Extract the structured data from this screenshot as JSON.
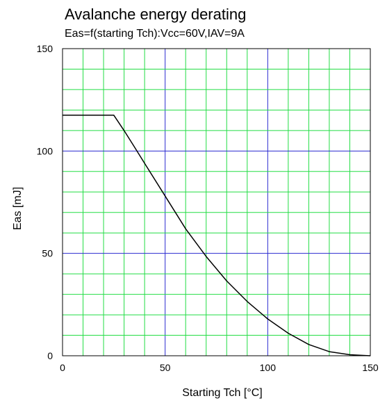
{
  "chart_data": {
    "type": "line",
    "title": "Avalanche energy derating",
    "subtitle": "Eas=f(starting Tch):Vcc=60V,IAV=9A",
    "xlabel": "Starting Tch [°C]",
    "ylabel": "Eas [mJ]",
    "xlim": [
      0,
      150
    ],
    "ylim": [
      0,
      150
    ],
    "x_ticks": [
      "0",
      "50",
      "100",
      "150"
    ],
    "y_ticks": [
      "0",
      "50",
      "100",
      "150"
    ],
    "grid": true,
    "colors": {
      "minor_grid": "#22dd44",
      "major_grid": "#2a2ad0",
      "line": "#000000"
    },
    "series": [
      {
        "x": [
          0,
          25,
          30,
          35,
          40,
          50,
          60,
          70,
          80,
          90,
          100,
          110,
          120,
          130,
          140,
          150
        ],
        "values": [
          117.5,
          117.5,
          110,
          102,
          94,
          78,
          62,
          48.5,
          36.5,
          26.5,
          18,
          11,
          5.5,
          2,
          0.5,
          0
        ]
      }
    ]
  }
}
